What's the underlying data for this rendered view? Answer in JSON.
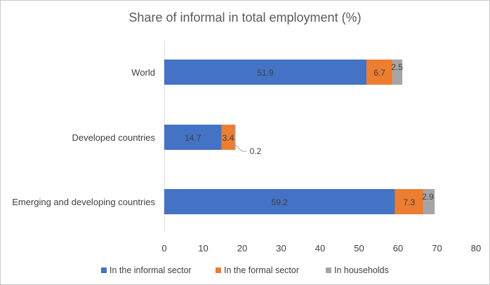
{
  "chart_data": {
    "type": "bar",
    "orientation": "horizontal",
    "stacked": true,
    "title": "Share of informal in total employment (%)",
    "xlabel": "",
    "ylabel": "",
    "xlim": [
      0,
      80
    ],
    "x_ticks": [
      "0",
      "10",
      "20",
      "30",
      "40",
      "50",
      "60",
      "70",
      "80"
    ],
    "grid": false,
    "legend_position": "bottom",
    "categories": [
      "World",
      "Developed countries",
      "Emerging and developing countries"
    ],
    "series": [
      {
        "name": "In the informal sector",
        "color": "#4472C4",
        "values": [
          51.9,
          14.7,
          59.2
        ],
        "labels": [
          "51.9",
          "14.7",
          "59.2"
        ]
      },
      {
        "name": "In the formal sector",
        "color": "#ED7D31",
        "values": [
          6.7,
          3.4,
          7.3
        ],
        "labels": [
          "6.7",
          "3.4",
          "7.3"
        ]
      },
      {
        "name": "In households",
        "color": "#A5A5A5",
        "values": [
          2.5,
          0.2,
          2.9
        ],
        "labels": [
          "2.5",
          "0.2",
          "2.9"
        ]
      }
    ]
  }
}
